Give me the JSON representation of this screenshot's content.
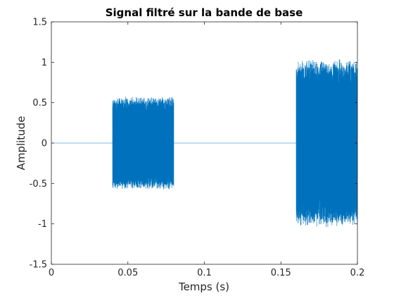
{
  "chart_data": {
    "type": "line",
    "title": "Signal filtré sur la bande de base",
    "xlabel": "Temps (s)",
    "ylabel": "Amplitude",
    "xlim": [
      0,
      0.2
    ],
    "ylim": [
      -1.5,
      1.5
    ],
    "xticks": [
      0,
      0.05,
      0.1,
      0.15,
      0.2
    ],
    "xtick_labels": [
      "0",
      "0.05",
      "0.1",
      "0.15",
      "0.2"
    ],
    "yticks": [
      -1.5,
      -1,
      -0.5,
      0,
      0.5,
      1,
      1.5
    ],
    "ytick_labels": [
      "-1.5",
      "-1",
      "-0.5",
      "0",
      "0.5",
      "1",
      "1.5"
    ],
    "grid": false,
    "box": true,
    "series": [
      {
        "color": "#0072BD",
        "segments": [
          {
            "t_start": 0,
            "t_end": 0.04,
            "amplitude": 0
          },
          {
            "t_start": 0.04,
            "t_end": 0.08,
            "amplitude": 0.58
          },
          {
            "t_start": 0.08,
            "t_end": 0.16,
            "amplitude": 0
          },
          {
            "t_start": 0.16,
            "t_end": 0.2,
            "amplitude": 1.05
          }
        ]
      }
    ]
  }
}
